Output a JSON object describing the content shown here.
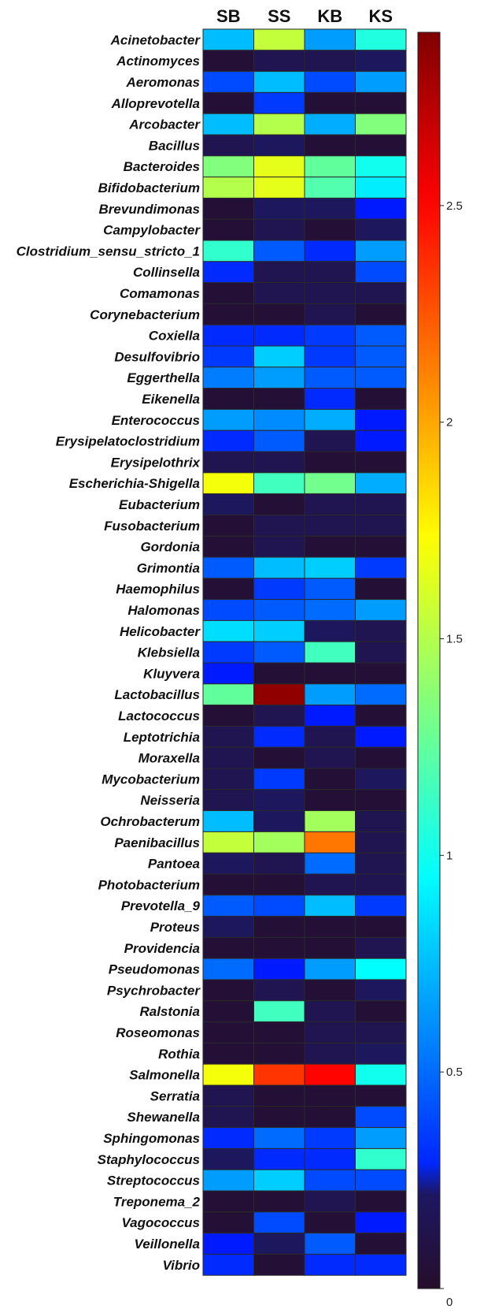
{
  "chart_data": {
    "type": "heatmap",
    "columns": [
      "SB",
      "SS",
      "KB",
      "KS"
    ],
    "rows": [
      "Acinetobacter",
      "Actinomyces",
      "Aeromonas",
      "Alloprevotella",
      "Arcobacter",
      "Bacillus",
      "Bacteroides",
      "Bifidobacterium",
      "Brevundimonas",
      "Campylobacter",
      "Clostridium_sensu_stricto_1",
      "Collinsella",
      "Comamonas",
      "Corynebacterium",
      "Coxiella",
      "Desulfovibrio",
      "Eggerthella",
      "Eikenella",
      "Enterococcus",
      "Erysipelatoclostridium",
      "Erysipelothrix",
      "Escherichia-Shigella",
      "Eubacterium",
      "Fusobacterium",
      "Gordonia",
      "Grimontia",
      "Haemophilus",
      "Halomonas",
      "Helicobacter",
      "Klebsiella",
      "Kluyvera",
      "Lactobacillus",
      "Lactococcus",
      "Leptotrichia",
      "Moraxella",
      "Mycobacterium",
      "Neisseria",
      "Ochrobacterum",
      "Paenibacillus",
      "Pantoea",
      "Photobacterium",
      "Prevotella_9",
      "Proteus",
      "Providencia",
      "Pseudomonas",
      "Psychrobacter",
      "Ralstonia",
      "Roseomonas",
      "Rothia",
      "Salmonella",
      "Serratia",
      "Shewanella",
      "Sphingomonas",
      "Staphylococcus",
      "Streptococcus",
      "Treponema_2",
      "Vagococcus",
      "Veillonella",
      "Vibrio"
    ],
    "values": [
      [
        0.75,
        1.55,
        0.65,
        1.05
      ],
      [
        0.05,
        0.15,
        0.15,
        0.2
      ],
      [
        0.4,
        0.75,
        0.4,
        0.65
      ],
      [
        0.05,
        0.35,
        0.05,
        0.05
      ],
      [
        0.75,
        1.5,
        0.7,
        1.35
      ],
      [
        0.15,
        0.2,
        0.05,
        0.05
      ],
      [
        1.35,
        1.65,
        1.25,
        1.0
      ],
      [
        1.5,
        1.65,
        1.2,
        0.9
      ],
      [
        0.05,
        0.2,
        0.2,
        0.25
      ],
      [
        0.05,
        0.15,
        0.05,
        0.2
      ],
      [
        1.1,
        0.45,
        0.3,
        0.65
      ],
      [
        0.3,
        0.15,
        0.15,
        0.4
      ],
      [
        0.05,
        0.15,
        0.15,
        0.15
      ],
      [
        0.05,
        0.05,
        0.15,
        0.05
      ],
      [
        0.3,
        0.3,
        0.35,
        0.45
      ],
      [
        0.35,
        0.8,
        0.35,
        0.45
      ],
      [
        0.55,
        0.65,
        0.45,
        0.45
      ],
      [
        0.05,
        0.05,
        0.3,
        0.05
      ],
      [
        0.65,
        0.6,
        0.7,
        0.25
      ],
      [
        0.3,
        0.45,
        0.15,
        0.25
      ],
      [
        0.15,
        0.15,
        0.05,
        0.05
      ],
      [
        1.7,
        1.15,
        1.3,
        0.7
      ],
      [
        0.2,
        0.05,
        0.15,
        0.15
      ],
      [
        0.05,
        0.15,
        0.15,
        0.15
      ],
      [
        0.05,
        0.15,
        0.05,
        0.05
      ],
      [
        0.45,
        0.75,
        0.8,
        0.35
      ],
      [
        0.05,
        0.35,
        0.45,
        0.05
      ],
      [
        0.4,
        0.45,
        0.5,
        0.65
      ],
      [
        0.85,
        0.8,
        0.2,
        0.15
      ],
      [
        0.35,
        0.45,
        1.15,
        0.15
      ],
      [
        0.25,
        0.05,
        0.05,
        0.05
      ],
      [
        1.25,
        2.85,
        0.65,
        0.5
      ],
      [
        0.05,
        0.15,
        0.25,
        0.05
      ],
      [
        0.15,
        0.3,
        0.15,
        0.25
      ],
      [
        0.15,
        0.05,
        0.15,
        0.05
      ],
      [
        0.15,
        0.35,
        0.05,
        0.2
      ],
      [
        0.15,
        0.2,
        0.05,
        0.05
      ],
      [
        0.75,
        0.2,
        1.45,
        0.15
      ],
      [
        1.55,
        1.45,
        2.15,
        0.15
      ],
      [
        0.2,
        0.15,
        0.5,
        0.15
      ],
      [
        0.05,
        0.05,
        0.15,
        0.15
      ],
      [
        0.45,
        0.4,
        0.75,
        0.35
      ],
      [
        0.2,
        0.05,
        0.05,
        0.05
      ],
      [
        0.05,
        0.05,
        0.05,
        0.15
      ],
      [
        0.5,
        0.25,
        0.65,
        0.95
      ],
      [
        0.05,
        0.15,
        0.05,
        0.2
      ],
      [
        0.05,
        1.15,
        0.15,
        0.05
      ],
      [
        0.05,
        0.05,
        0.15,
        0.15
      ],
      [
        0.05,
        0.05,
        0.15,
        0.2
      ],
      [
        1.7,
        2.35,
        2.5,
        1.0
      ],
      [
        0.15,
        0.05,
        0.05,
        0.05
      ],
      [
        0.15,
        0.05,
        0.05,
        0.4
      ],
      [
        0.3,
        0.5,
        0.35,
        0.65
      ],
      [
        0.2,
        0.3,
        0.3,
        1.1
      ],
      [
        0.65,
        0.8,
        0.4,
        0.4
      ],
      [
        0.05,
        0.05,
        0.15,
        0.05
      ],
      [
        0.05,
        0.4,
        0.05,
        0.25
      ],
      [
        0.25,
        0.2,
        0.45,
        0.05
      ],
      [
        0.3,
        0.05,
        0.3,
        0.3
      ]
    ],
    "colorbar": {
      "min": 0,
      "max": 2.9,
      "ticks": [
        0,
        0.5,
        1,
        1.5,
        2,
        2.5
      ]
    },
    "colormap": "jet",
    "grid": true,
    "legend": "right"
  }
}
